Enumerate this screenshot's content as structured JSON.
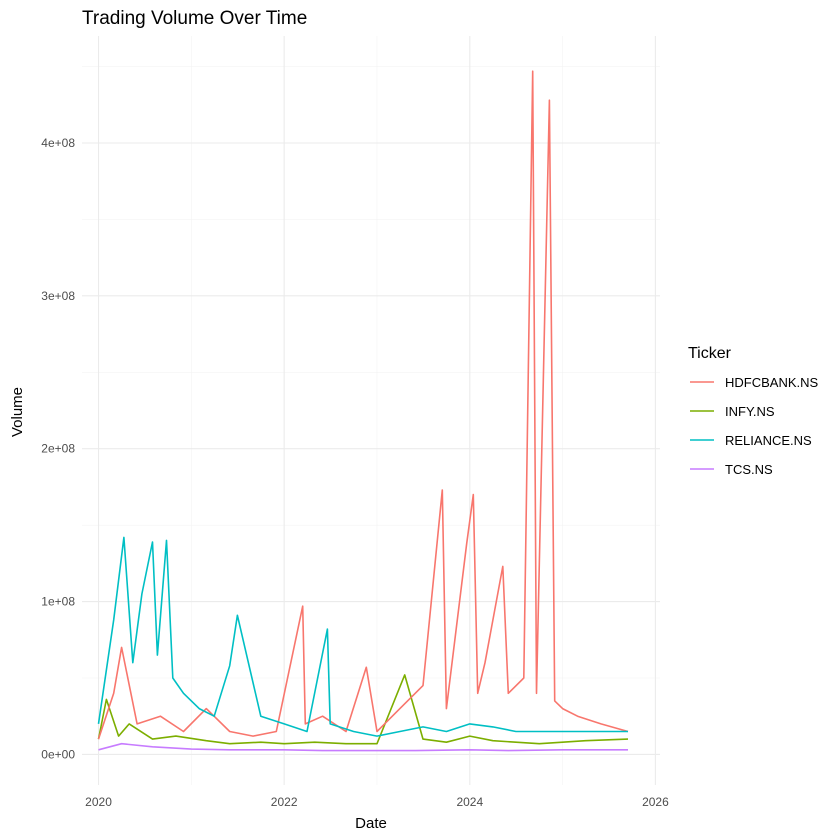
{
  "chart_data": {
    "type": "line",
    "title": "Trading Volume Over Time",
    "xlabel": "Date",
    "ylabel": "Volume",
    "x_ticks": [
      "2020",
      "2022",
      "2024",
      "2026"
    ],
    "x_tick_values": [
      2020,
      2022,
      2024,
      2026
    ],
    "y_ticks": [
      "0e+00",
      "1e+08",
      "2e+08",
      "3e+08",
      "4e+08"
    ],
    "y_tick_values": [
      0,
      100000000,
      200000000,
      300000000,
      400000000
    ],
    "xlim": [
      "2019-10-28",
      "2026-01-19"
    ],
    "ylim": [
      -20000000,
      470000000
    ],
    "grid": true,
    "legend": {
      "title": "Ticker",
      "position": "right"
    },
    "series": [
      {
        "name": "HDFCBANK.NS",
        "color": "#F8766D",
        "x": [
          "2020-01-01",
          "2020-03-01",
          "2020-04-01",
          "2020-06-01",
          "2020-09-01",
          "2020-12-01",
          "2021-03-01",
          "2021-06-01",
          "2021-09-01",
          "2021-12-01",
          "2022-03-15",
          "2022-03-25",
          "2022-06-01",
          "2022-09-01",
          "2022-11-20",
          "2023-01-01",
          "2023-04-01",
          "2023-07-01",
          "2023-09-15",
          "2023-10-01",
          "2023-12-20",
          "2024-01-15",
          "2024-02-01",
          "2024-03-01",
          "2024-05-10",
          "2024-06-01",
          "2024-08-01",
          "2024-09-05",
          "2024-09-20",
          "2024-11-10",
          "2024-12-01",
          "2025-01-01",
          "2025-03-01",
          "2025-06-01",
          "2025-09-15"
        ],
        "y": [
          10000000,
          40000000,
          70000000,
          20000000,
          25000000,
          15000000,
          30000000,
          15000000,
          12000000,
          15000000,
          97000000,
          20000000,
          25000000,
          15000000,
          57000000,
          15000000,
          30000000,
          45000000,
          173000000,
          30000000,
          138000000,
          170000000,
          40000000,
          60000000,
          123000000,
          40000000,
          50000000,
          447000000,
          40000000,
          428000000,
          35000000,
          30000000,
          25000000,
          20000000,
          15000000
        ]
      },
      {
        "name": "INFY.NS",
        "color": "#7CAE00",
        "x": [
          "2020-01-01",
          "2020-02-01",
          "2020-03-20",
          "2020-05-01",
          "2020-08-01",
          "2020-11-01",
          "2021-03-01",
          "2021-06-01",
          "2021-10-01",
          "2022-01-01",
          "2022-05-01",
          "2022-09-01",
          "2023-01-01",
          "2023-04-20",
          "2023-07-01",
          "2023-10-01",
          "2024-01-01",
          "2024-04-01",
          "2024-07-01",
          "2024-10-01",
          "2025-01-01",
          "2025-04-01",
          "2025-09-15"
        ],
        "y": [
          10000000,
          36000000,
          12000000,
          20000000,
          10000000,
          12000000,
          9000000,
          7000000,
          8000000,
          7000000,
          8000000,
          7000000,
          7000000,
          52000000,
          10000000,
          8000000,
          12000000,
          9000000,
          8000000,
          7000000,
          8000000,
          9000000,
          10000000
        ]
      },
      {
        "name": "RELIANCE.NS",
        "color": "#00BFC4",
        "x": [
          "2020-01-01",
          "2020-03-01",
          "2020-04-10",
          "2020-05-15",
          "2020-06-20",
          "2020-08-01",
          "2020-08-20",
          "2020-09-25",
          "2020-10-20",
          "2020-12-01",
          "2021-02-01",
          "2021-04-01",
          "2021-06-01",
          "2021-07-01",
          "2021-10-01",
          "2022-01-01",
          "2022-04-01",
          "2022-06-20",
          "2022-07-01",
          "2022-10-01",
          "2023-01-01",
          "2023-04-01",
          "2023-07-01",
          "2023-10-01",
          "2024-01-01",
          "2024-04-01",
          "2024-07-01",
          "2024-10-01",
          "2025-01-01",
          "2025-04-01",
          "2025-09-15"
        ],
        "y": [
          20000000,
          88000000,
          142000000,
          60000000,
          105000000,
          139000000,
          65000000,
          140000000,
          50000000,
          40000000,
          30000000,
          25000000,
          58000000,
          91000000,
          25000000,
          20000000,
          15000000,
          82000000,
          20000000,
          15000000,
          12000000,
          15000000,
          18000000,
          15000000,
          20000000,
          18000000,
          15000000,
          15000000,
          15000000,
          15000000,
          15000000
        ]
      },
      {
        "name": "TCS.NS",
        "color": "#C77CFF",
        "x": [
          "2020-01-01",
          "2020-04-01",
          "2020-08-01",
          "2021-01-01",
          "2021-06-01",
          "2022-01-01",
          "2022-06-01",
          "2023-01-01",
          "2023-06-01",
          "2024-01-01",
          "2024-06-01",
          "2025-01-01",
          "2025-09-15"
        ],
        "y": [
          3000000,
          7000000,
          5000000,
          3500000,
          3000000,
          3000000,
          2500000,
          2500000,
          2500000,
          3000000,
          2500000,
          3000000,
          3000000
        ]
      }
    ]
  }
}
